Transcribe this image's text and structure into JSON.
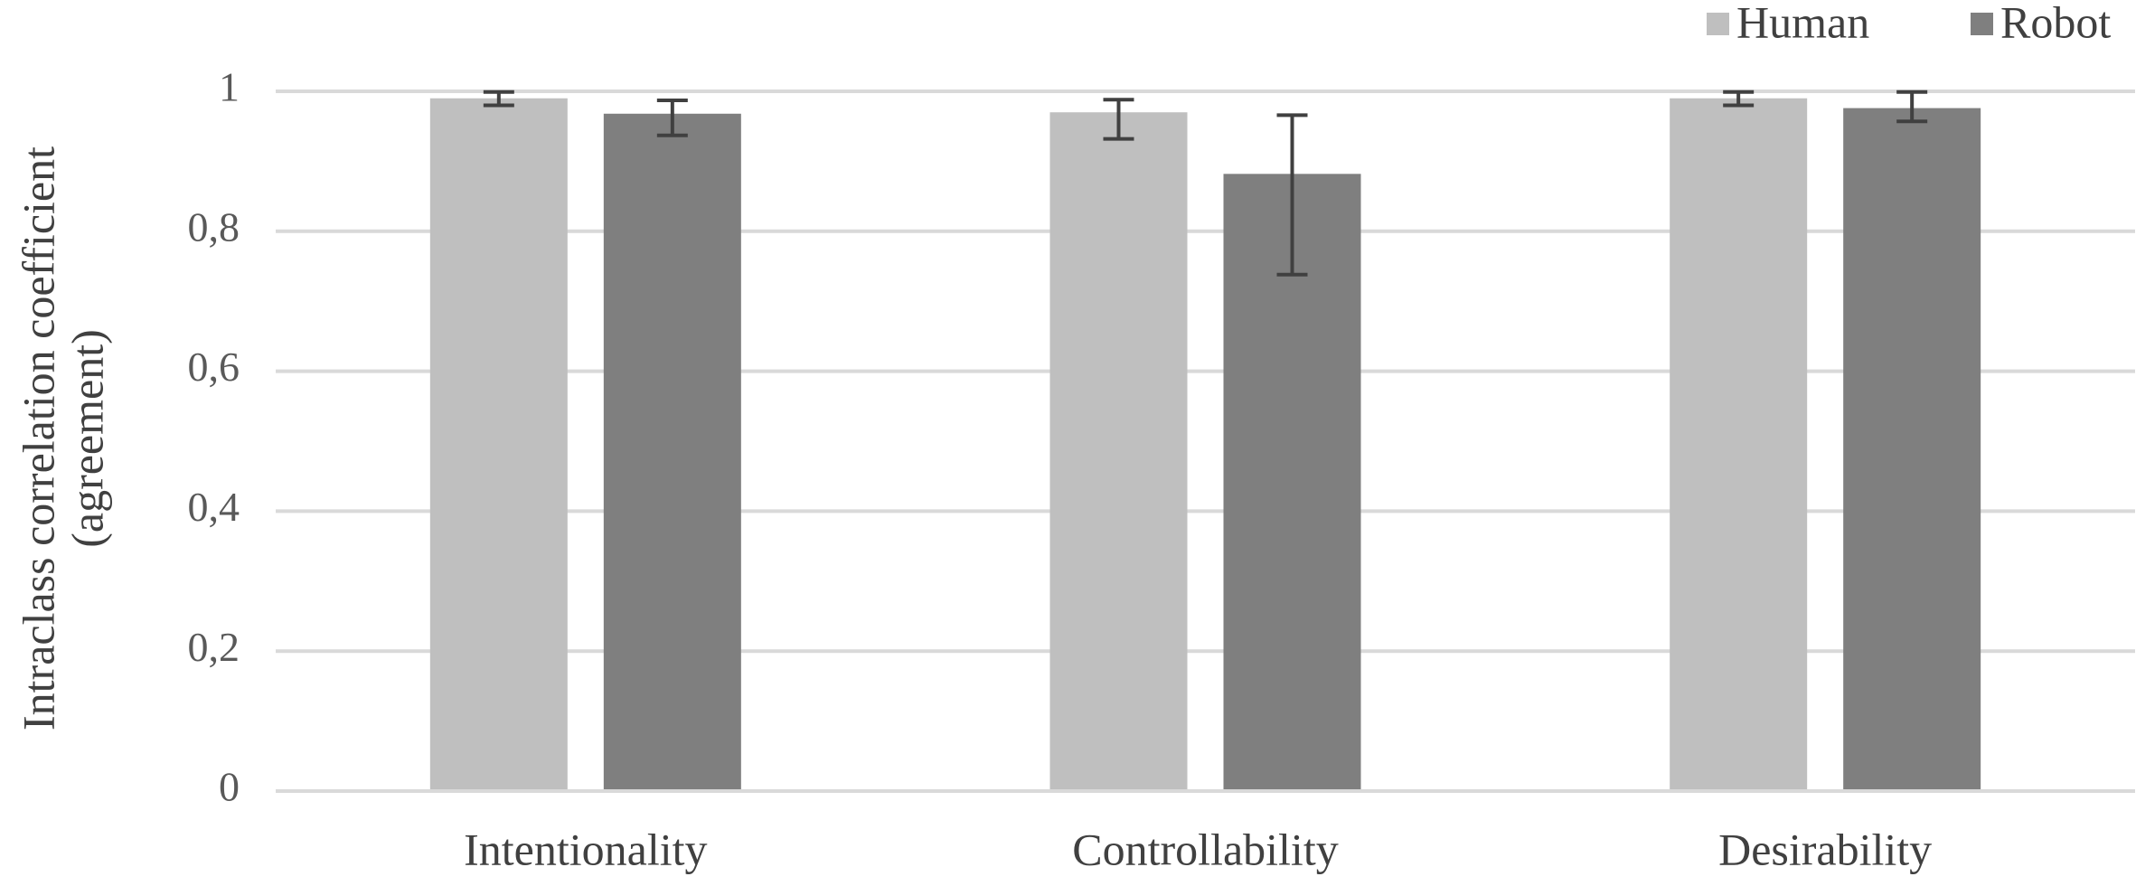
{
  "chart_data": {
    "type": "bar",
    "title": "",
    "ylabel_lines": [
      "Intraclass correlation coefficient",
      "(agreement)"
    ],
    "xlabel": "",
    "ylim": [
      0,
      1
    ],
    "yticks": [
      0,
      0.2,
      0.4,
      0.6,
      0.8,
      1
    ],
    "ytick_labels": [
      "0",
      "0,2",
      "0,4",
      "0,6",
      "0,8",
      "1"
    ],
    "grid": true,
    "legend_position": "top-right",
    "categories": [
      "Intentionality",
      "Controllability",
      "Desirability"
    ],
    "series": [
      {
        "name": "Human",
        "color": "#bfbfbf",
        "values": [
          0.99,
          0.97,
          0.99
        ],
        "error_low": [
          0.98,
          0.932,
          0.98
        ],
        "error_high": [
          0.999,
          0.988,
          0.999
        ]
      },
      {
        "name": "Robot",
        "color": "#7f7f7f",
        "values": [
          0.968,
          0.882,
          0.976
        ],
        "error_low": [
          0.937,
          0.738,
          0.957
        ],
        "error_high": [
          0.987,
          0.966,
          0.999
        ]
      }
    ],
    "error_bar_color": "#404040",
    "gridline_color": "#d9d9d9"
  }
}
